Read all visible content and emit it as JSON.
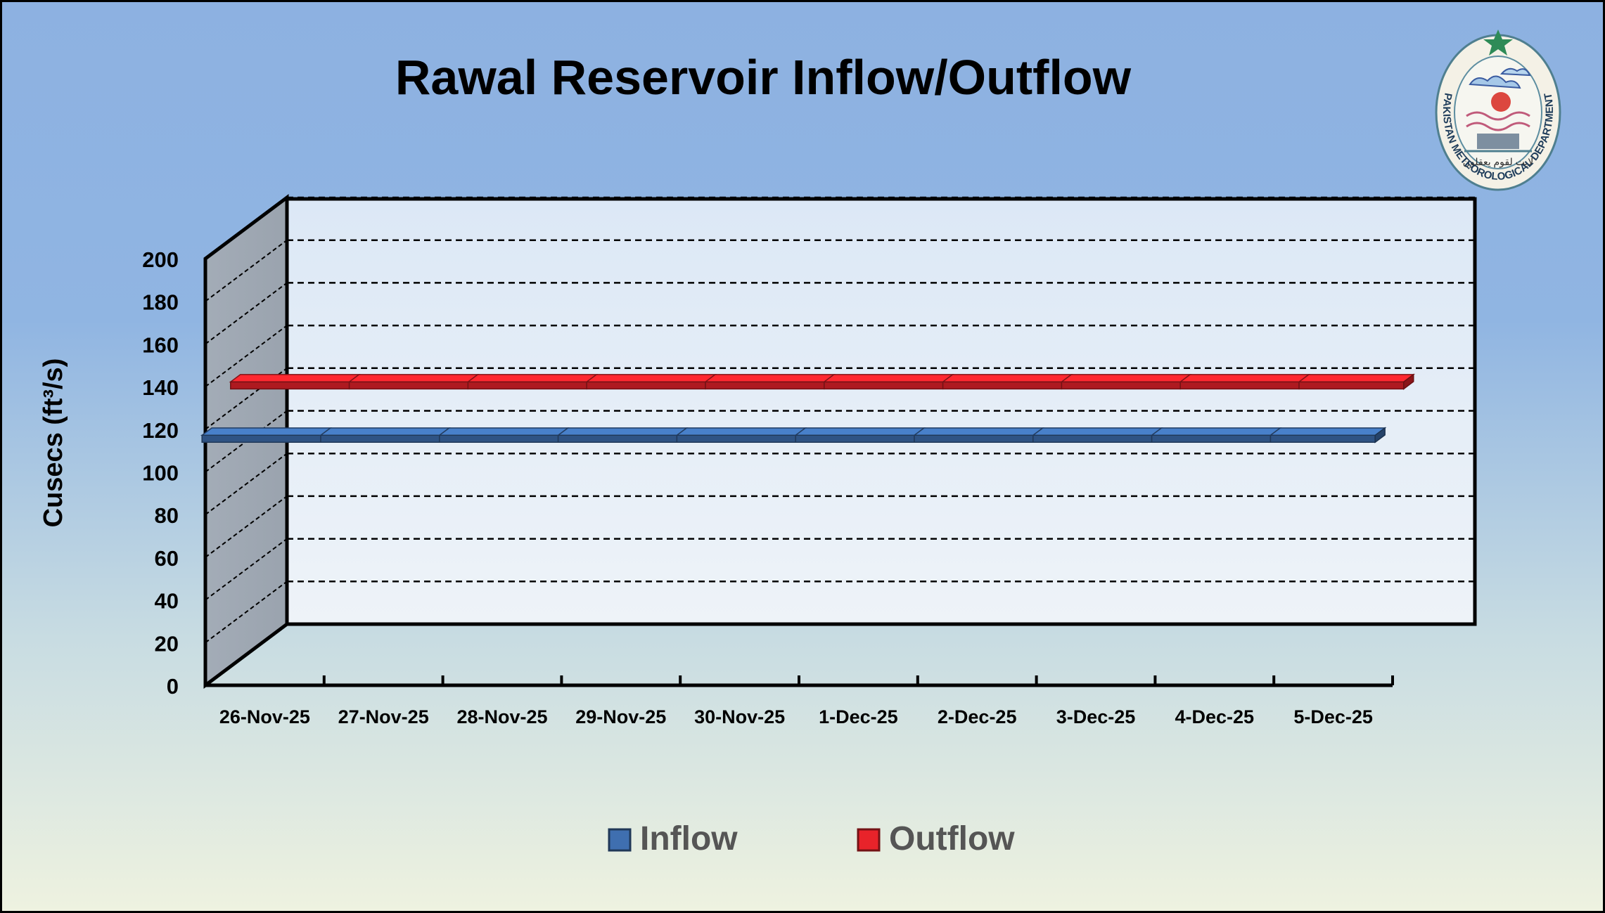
{
  "chart_data": {
    "type": "line",
    "title": "Rawal Reservoir Inflow/Outflow",
    "ylabel": "Cusecs (ft³/s)",
    "xlabel": "",
    "categories": [
      "26-Nov-25",
      "27-Nov-25",
      "28-Nov-25",
      "29-Nov-25",
      "30-Nov-25",
      "1-Dec-25",
      "2-Dec-25",
      "3-Dec-25",
      "4-Dec-25",
      "5-Dec-25"
    ],
    "y_ticks": [
      "0",
      "20",
      "40",
      "60",
      "80",
      "100",
      "120",
      "140",
      "160",
      "180",
      "200"
    ],
    "ylim": [
      0,
      200
    ],
    "grid": true,
    "style": "3d",
    "legend_position": "bottom",
    "series": [
      {
        "name": "Inflow",
        "values": [
          100,
          100,
          100,
          100,
          100,
          100,
          100,
          100,
          100,
          100
        ],
        "color": "#3F6FB0"
      },
      {
        "name": "Outflow",
        "values": [
          115,
          115,
          115,
          115,
          115,
          115,
          115,
          115,
          115,
          115
        ],
        "color": "#E8232A"
      }
    ]
  },
  "logo": {
    "text": "PAKISTAN METEOROLOGICAL DEPARTMENT",
    "urdu_text": "لایت لقوم یعقلون"
  }
}
